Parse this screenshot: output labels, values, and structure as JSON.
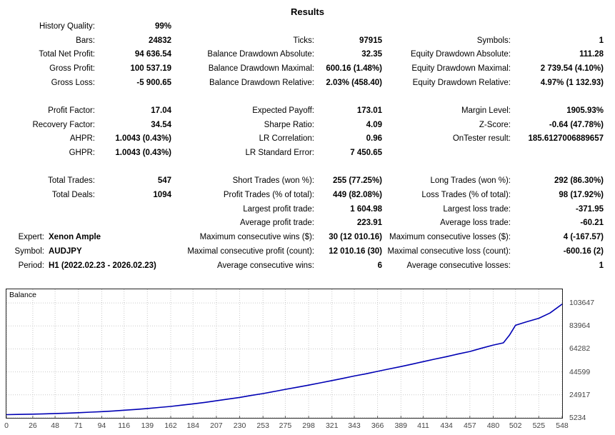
{
  "title": "Results",
  "stats_rows": [
    {
      "l": {
        "label": "History Quality:",
        "value": "99%"
      },
      "m": null,
      "r": null
    },
    {
      "l": {
        "label": "Bars:",
        "value": "24832"
      },
      "m": {
        "label": "Ticks:",
        "value": "97915"
      },
      "r": {
        "label": "Symbols:",
        "value": "1"
      }
    },
    {
      "l": {
        "label": "Total Net Profit:",
        "value": "94 636.54"
      },
      "m": {
        "label": "Balance Drawdown Absolute:",
        "value": "32.35"
      },
      "r": {
        "label": "Equity Drawdown Absolute:",
        "value": "111.28"
      }
    },
    {
      "l": {
        "label": "Gross Profit:",
        "value": "100 537.19"
      },
      "m": {
        "label": "Balance Drawdown Maximal:",
        "value": "600.16 (1.48%)"
      },
      "r": {
        "label": "Equity Drawdown Maximal:",
        "value": "2 739.54 (4.10%)"
      }
    },
    {
      "l": {
        "label": "Gross Loss:",
        "value": "-5 900.65"
      },
      "m": {
        "label": "Balance Drawdown Relative:",
        "value": "2.03% (458.40)"
      },
      "r": {
        "label": "Equity Drawdown Relative:",
        "value": "4.97% (1 132.93)"
      }
    },
    {
      "l": null,
      "m": null,
      "r": null
    },
    {
      "l": {
        "label": "Profit Factor:",
        "value": "17.04"
      },
      "m": {
        "label": "Expected Payoff:",
        "value": "173.01"
      },
      "r": {
        "label": "Margin Level:",
        "value": "1905.93%"
      }
    },
    {
      "l": {
        "label": "Recovery Factor:",
        "value": "34.54"
      },
      "m": {
        "label": "Sharpe Ratio:",
        "value": "4.09"
      },
      "r": {
        "label": "Z-Score:",
        "value": "-0.64 (47.78%)"
      }
    },
    {
      "l": {
        "label": "AHPR:",
        "value": "1.0043 (0.43%)"
      },
      "m": {
        "label": "LR Correlation:",
        "value": "0.96"
      },
      "r": {
        "label": "OnTester result:",
        "value": "185.6127006889657"
      }
    },
    {
      "l": {
        "label": "GHPR:",
        "value": "1.0043 (0.43%)"
      },
      "m": {
        "label": "LR Standard Error:",
        "value": "7 450.65"
      },
      "r": null
    },
    {
      "l": null,
      "m": null,
      "r": null
    },
    {
      "l": {
        "label": "Total Trades:",
        "value": "547"
      },
      "m": {
        "label": "Short Trades (won %):",
        "value": "255 (77.25%)"
      },
      "r": {
        "label": "Long Trades (won %):",
        "value": "292 (86.30%)"
      }
    },
    {
      "l": {
        "label": "Total Deals:",
        "value": "1094"
      },
      "m": {
        "label": "Profit Trades (% of total):",
        "value": "449 (82.08%)"
      },
      "r": {
        "label": "Loss Trades (% of total):",
        "value": "98 (17.92%)"
      }
    },
    {
      "l": null,
      "m": {
        "label": "Largest profit trade:",
        "value": "1 604.98"
      },
      "r": {
        "label": "Largest loss trade:",
        "value": "-371.95"
      }
    },
    {
      "l": null,
      "m": {
        "label": "Average profit trade:",
        "value": "223.91"
      },
      "r": {
        "label": "Average loss trade:",
        "value": "-60.21"
      }
    },
    {
      "l": null,
      "m": {
        "label": "Maximum consecutive wins ($):",
        "value": "30 (12 010.16)"
      },
      "r": {
        "label": "Maximum consecutive losses ($):",
        "value": "4 (-167.57)"
      }
    },
    {
      "l": null,
      "m": {
        "label": "Maximal consecutive profit (count):",
        "value": "12 010.16 (30)"
      },
      "r": {
        "label": "Maximal consecutive loss (count):",
        "value": "-600.16 (2)"
      }
    },
    {
      "l": null,
      "m": {
        "label": "Average consecutive wins:",
        "value": "6"
      },
      "r": {
        "label": "Average consecutive losses:",
        "value": "1"
      }
    }
  ],
  "info": [
    {
      "label": "Expert:",
      "value": "Xenon Ample"
    },
    {
      "label": "Symbol:",
      "value": "AUDJPY"
    },
    {
      "label": "Period:",
      "value": "H1 (2022.02.23 - 2026.02.23)"
    }
  ],
  "chart_data": {
    "type": "line",
    "title": "Balance",
    "legend_position": "top-left-inside",
    "grid": true,
    "line_color": "#0000b4",
    "grid_color": "#c9c9c9",
    "xlim": [
      0,
      548
    ],
    "ylim": [
      5234,
      115334
    ],
    "x_ticks": [
      0,
      26,
      48,
      71,
      94,
      116,
      139,
      162,
      184,
      207,
      230,
      253,
      275,
      298,
      321,
      343,
      366,
      389,
      411,
      434,
      457,
      480,
      502,
      525,
      548
    ],
    "y_ticks": [
      5234,
      24917,
      44599,
      64282,
      83964,
      103647
    ],
    "series": [
      {
        "name": "Balance",
        "x": [
          0,
          11,
          26,
          37,
          48,
          60,
          71,
          83,
          94,
          105,
          116,
          128,
          139,
          150,
          162,
          173,
          184,
          196,
          207,
          218,
          230,
          241,
          253,
          264,
          275,
          287,
          298,
          310,
          321,
          332,
          343,
          355,
          366,
          377,
          389,
          400,
          411,
          422,
          434,
          445,
          457,
          468,
          480,
          490,
          496,
          502,
          513,
          525,
          536,
          548
        ],
        "values": [
          8000,
          8150,
          8400,
          8650,
          8950,
          9300,
          9650,
          10100,
          10550,
          11100,
          11750,
          12450,
          13250,
          14100,
          15050,
          16100,
          17250,
          18500,
          19850,
          21250,
          22750,
          24350,
          26050,
          27800,
          29650,
          31450,
          33250,
          35250,
          37150,
          39050,
          41050,
          43050,
          45050,
          47050,
          49150,
          51250,
          53350,
          55450,
          57650,
          59850,
          62050,
          64750,
          67550,
          69450,
          76000,
          84500,
          87500,
          90500,
          95000,
          102636
        ]
      }
    ]
  }
}
